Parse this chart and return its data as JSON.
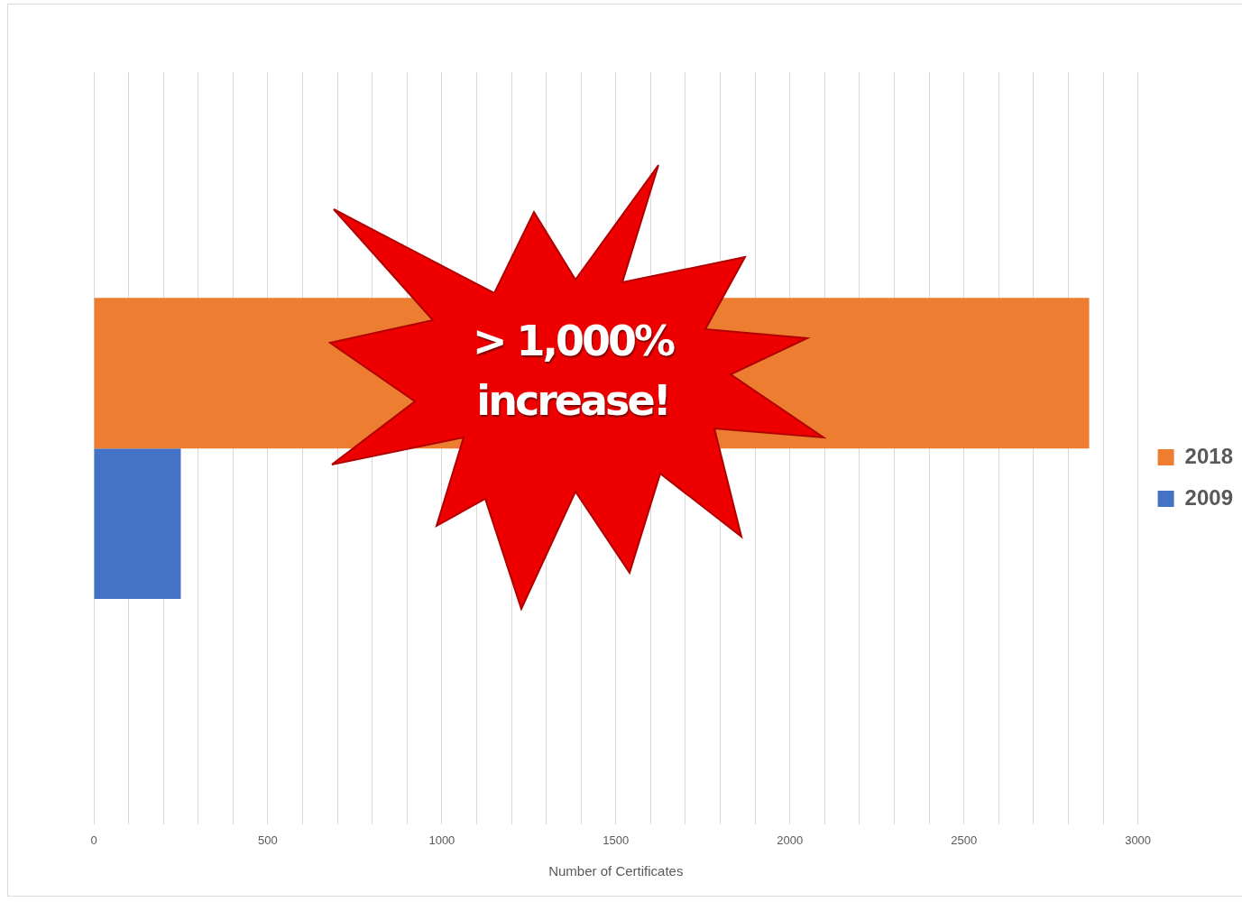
{
  "chart_data": {
    "type": "bar",
    "orientation": "horizontal",
    "categories": [
      null
    ],
    "series": [
      {
        "name": "2018",
        "color": "#ed7d31",
        "values": [
          2860
        ]
      },
      {
        "name": "2009",
        "color": "#4472c4",
        "values": [
          250
        ]
      }
    ],
    "xlabel": "Number of Certificates",
    "xlim": [
      0,
      3000
    ],
    "xticks": [
      0,
      {
        "value": 100,
        "label": null
      },
      {
        "value": 200,
        "label": null
      },
      {
        "value": 300,
        "label": null
      },
      {
        "value": 400,
        "label": null
      },
      500,
      {
        "value": 600,
        "label": null
      },
      {
        "value": 700,
        "label": null
      },
      {
        "value": 800,
        "label": null
      },
      {
        "value": 900,
        "label": null
      },
      1000,
      {
        "value": 1100,
        "label": null
      },
      {
        "value": 1200,
        "label": null
      },
      {
        "value": 1300,
        "label": null
      },
      {
        "value": 1400,
        "label": null
      },
      1500,
      {
        "value": 1600,
        "label": null
      },
      {
        "value": 1700,
        "label": null
      },
      {
        "value": 1800,
        "label": null
      },
      {
        "value": 1900,
        "label": null
      },
      2000,
      {
        "value": 2100,
        "label": null
      },
      {
        "value": 2200,
        "label": null
      },
      {
        "value": 2300,
        "label": null
      },
      {
        "value": 2400,
        "label": null
      },
      2500,
      {
        "value": 2600,
        "label": null
      },
      {
        "value": 2700,
        "label": null
      },
      {
        "value": 2800,
        "label": null
      },
      {
        "value": 2900,
        "label": null
      },
      3000
    ],
    "grid": "x",
    "legend": "right",
    "annotations": [
      "> 1,000% increase!"
    ]
  }
}
